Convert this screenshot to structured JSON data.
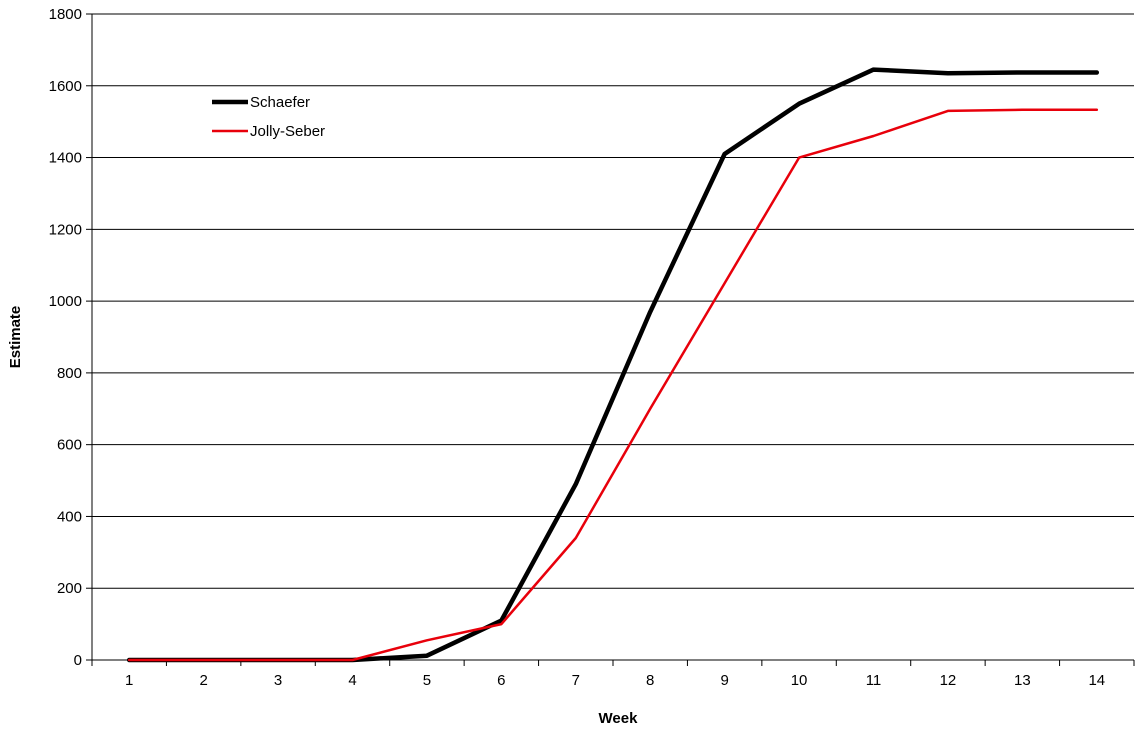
{
  "chart_data": {
    "type": "line",
    "title": "",
    "xlabel": "Week",
    "ylabel": "Estimate",
    "categories": [
      "1",
      "2",
      "3",
      "4",
      "5",
      "6",
      "7",
      "8",
      "9",
      "10",
      "11",
      "12",
      "13",
      "14"
    ],
    "ylim": [
      0,
      1800
    ],
    "yticks": [
      0,
      200,
      400,
      600,
      800,
      1000,
      1200,
      1400,
      1600,
      1800
    ],
    "grid": "horizontal",
    "legend": "top-left",
    "series": [
      {
        "name": "Schaefer",
        "color": "#000000",
        "values": [
          0,
          0,
          0,
          0,
          12,
          110,
          490,
          970,
          1410,
          1550,
          1645,
          1635,
          1637,
          1637
        ]
      },
      {
        "name": "Jolly-Seber",
        "color": "#e8000b",
        "values": [
          0,
          0,
          0,
          0,
          55,
          100,
          340,
          700,
          1050,
          1400,
          1460,
          1530,
          1533,
          1533
        ]
      }
    ]
  }
}
